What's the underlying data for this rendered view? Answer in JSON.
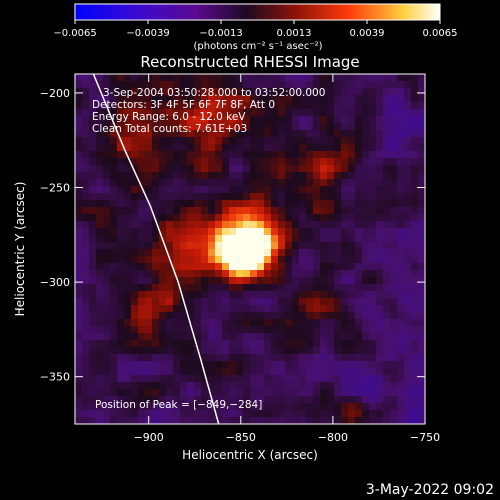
{
  "chart_data": {
    "type": "heatmap",
    "title": "Reconstructed RHESSI Image",
    "xlabel": "Heliocentric X (arcsec)",
    "ylabel": "Heliocentric Y (arcsec)",
    "xlim": [
      -940,
      -750
    ],
    "ylim": [
      -375,
      -190
    ],
    "x_ticks": [
      -900,
      -850,
      -800,
      -750
    ],
    "y_ticks": [
      -200,
      -250,
      -300,
      -350
    ],
    "x_tick_labels": [
      "−900",
      "−850",
      "−800",
      "−750"
    ],
    "y_tick_labels": [
      "−200",
      "−250",
      "−300",
      "−350"
    ],
    "colorbar": {
      "range": [
        -0.0065,
        0.0065
      ],
      "ticks": [
        -0.0065,
        -0.0039,
        -0.0013,
        0.0013,
        0.0039,
        0.0065
      ],
      "tick_labels": [
        "−0.0065",
        "−0.0039",
        "−0.0013",
        "0.0013",
        "0.0039",
        "0.0065"
      ],
      "unit_label": "(photons cm⁻² s⁻¹ asec⁻²)",
      "colors": [
        "#0000ff",
        "#5a0aa8",
        "#1a0a1e",
        "#9a1508",
        "#ff3a0a",
        "#ffe060",
        "#ffffff"
      ]
    },
    "annotations": {
      "time": "3-Sep-2004 03:50:28.000 to 03:52:00.000",
      "detectors": "Detectors: 3F 4F 5F 6F 7F 8F, Att 0",
      "energy": "Energy Range: 6.0 - 12.0 keV",
      "clean": "Clean    Total counts: 7.61E+03",
      "peak": "Position of Peak = [−849,−284]"
    },
    "peak": {
      "x": -849,
      "y": -284
    },
    "limb_curve": [
      [
        -930,
        -190
      ],
      [
        -913,
        -230
      ],
      [
        -899,
        -260
      ],
      [
        -884,
        -300
      ],
      [
        -872,
        -340
      ],
      [
        -862,
        -375
      ]
    ],
    "grid": false
  },
  "footer": {
    "date": "3-May-2022 09:02"
  }
}
